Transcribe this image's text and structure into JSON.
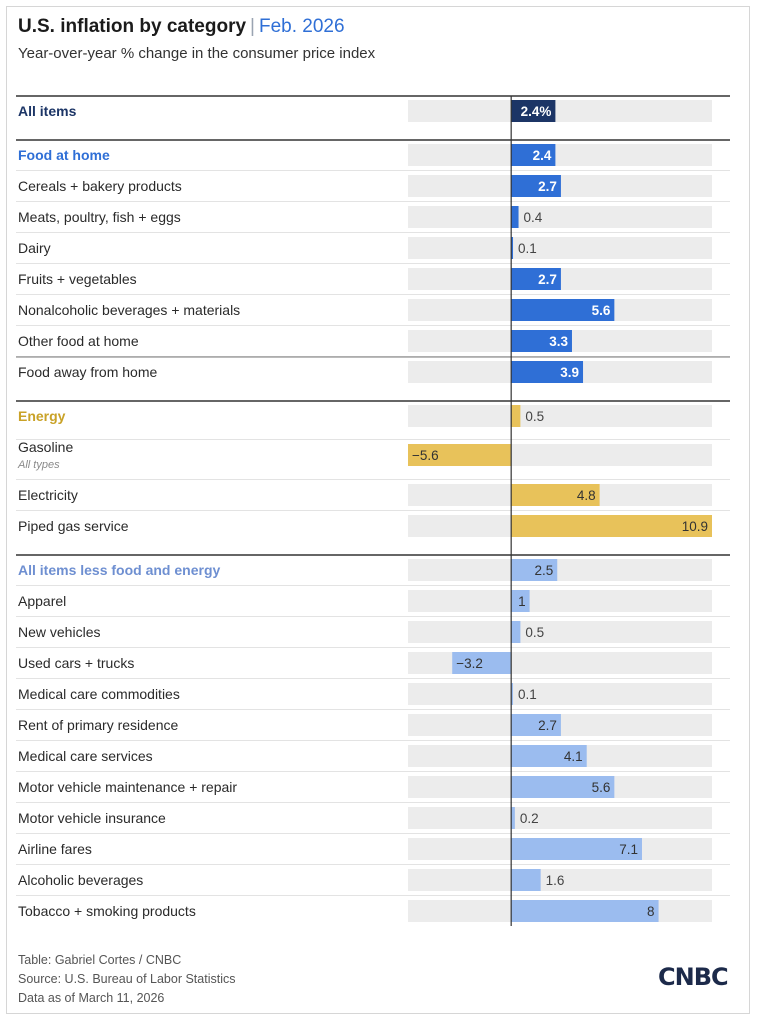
{
  "header": {
    "title": "U.S. inflation by category",
    "separator": "|",
    "date": "Feb. 2026",
    "subtitle": "Year-over-year % change in the consumer price index"
  },
  "colors": {
    "all_items": "#1c3566",
    "food": "#2f6fd6",
    "energy": "#e8c25a",
    "core": "#9bbcef",
    "energy_header": "#c9a227",
    "core_header": "#6e8fd1",
    "track": "#ececec"
  },
  "chart_data": {
    "type": "bar",
    "orientation": "horizontal",
    "axis_zero": 0,
    "xlim": [
      -5.6,
      10.9
    ],
    "rows": [
      {
        "label": "All items",
        "value": 2.4,
        "value_label": "2.4%",
        "group": "all",
        "header": true
      },
      {
        "label": "Food at home",
        "value": 2.4,
        "value_label": "2.4",
        "group": "food",
        "header": true
      },
      {
        "label": "Cereals + bakery products",
        "value": 2.7,
        "value_label": "2.7",
        "group": "food"
      },
      {
        "label": "Meats, poultry, fish + eggs",
        "value": 0.4,
        "value_label": "0.4",
        "group": "food"
      },
      {
        "label": "Dairy",
        "value": 0.1,
        "value_label": "0.1",
        "group": "food"
      },
      {
        "label": "Fruits + vegetables",
        "value": 2.7,
        "value_label": "2.7",
        "group": "food"
      },
      {
        "label": "Nonalcoholic beverages + materials",
        "value": 5.6,
        "value_label": "5.6",
        "group": "food"
      },
      {
        "label": "Other food at home",
        "value": 3.3,
        "value_label": "3.3",
        "group": "food"
      },
      {
        "label": "Food away from home",
        "value": 3.9,
        "value_label": "3.9",
        "group": "food"
      },
      {
        "label": "Energy",
        "value": 0.5,
        "value_label": "0.5",
        "group": "energy",
        "header": true
      },
      {
        "label": "Gasoline",
        "sublabel": "All types",
        "value": -5.6,
        "value_label": "−5.6",
        "group": "energy"
      },
      {
        "label": "Electricity",
        "value": 4.8,
        "value_label": "4.8",
        "group": "energy"
      },
      {
        "label": "Piped gas service",
        "value": 10.9,
        "value_label": "10.9",
        "group": "energy"
      },
      {
        "label": "All items less food and energy",
        "value": 2.5,
        "value_label": "2.5",
        "group": "core",
        "header": true
      },
      {
        "label": "Apparel",
        "value": 1,
        "value_label": "1",
        "group": "core"
      },
      {
        "label": "New vehicles",
        "value": 0.5,
        "value_label": "0.5",
        "group": "core"
      },
      {
        "label": "Used cars + trucks",
        "value": -3.2,
        "value_label": "−3.2",
        "group": "core"
      },
      {
        "label": "Medical care commodities",
        "value": 0.1,
        "value_label": "0.1",
        "group": "core"
      },
      {
        "label": "Rent of primary residence",
        "value": 2.7,
        "value_label": "2.7",
        "group": "core"
      },
      {
        "label": "Medical care services",
        "value": 4.1,
        "value_label": "4.1",
        "group": "core"
      },
      {
        "label": "Motor vehicle maintenance + repair",
        "value": 5.6,
        "value_label": "5.6",
        "group": "core"
      },
      {
        "label": "Motor vehicle insurance",
        "value": 0.2,
        "value_label": "0.2",
        "group": "core"
      },
      {
        "label": "Airline fares",
        "value": 7.1,
        "value_label": "7.1",
        "group": "core"
      },
      {
        "label": "Alcoholic beverages",
        "value": 1.6,
        "value_label": "1.6",
        "group": "core"
      },
      {
        "label": "Tobacco + smoking products",
        "value": 8,
        "value_label": "8",
        "group": "core"
      }
    ]
  },
  "footer": {
    "credit": "Table: Gabriel Cortes / CNBC",
    "source": "Source: U.S. Bureau of Labor Statistics",
    "asof": "Data as of March 11, 2026",
    "logo": "CNBC"
  }
}
